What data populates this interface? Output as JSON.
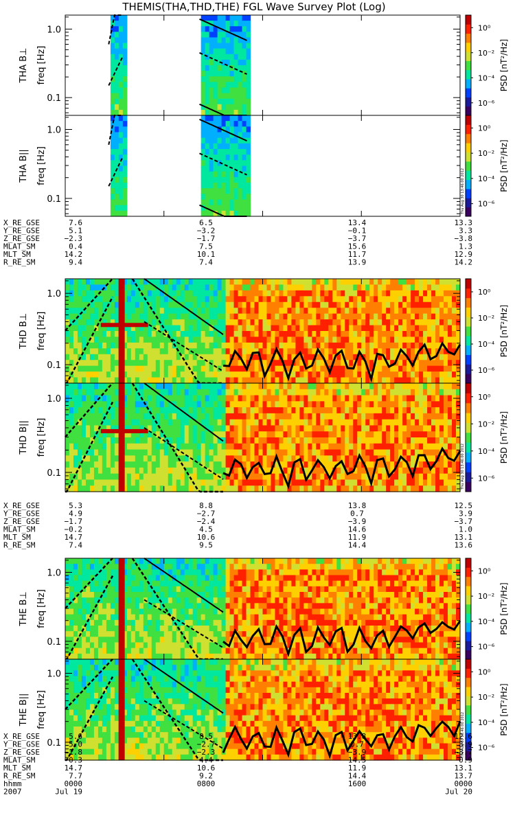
{
  "title": "THEMIS(THA,THD,THE) FGL Wave Survey Plot (Log)",
  "colors": {
    "background": "#ffffff",
    "axis": "#000000",
    "colorbar": [
      "#3a0060",
      "#1a1a9a",
      "#0040ff",
      "#00b0ff",
      "#00e8a0",
      "#40e040",
      "#d0e030",
      "#ffd000",
      "#ff8000",
      "#ff2000",
      "#c00000"
    ]
  },
  "stamp_text": "Thu Aug 30 13:46:00 2012",
  "chart_data": {
    "type": "heatmap",
    "scale": "log",
    "x_range": [
      "2007 Jul 19 0000",
      "2007 Jul 20 0000"
    ],
    "y_range_hz": [
      0.055,
      1.6
    ],
    "y_ticks": [
      "1.0",
      "0.1"
    ],
    "colorbar": {
      "label": "PSD [nT²/Hz]",
      "ticks": [
        "10⁰",
        "10⁻²",
        "10⁻⁴",
        "10⁻⁶"
      ],
      "range": [
        1e-07,
        10
      ]
    },
    "panels": [
      {
        "ylabel": "THA B⊥",
        "yunit": "freq [Hz]",
        "probe": "A"
      },
      {
        "ylabel": "THA B||",
        "yunit": "freq [Hz]",
        "probe": "A"
      },
      {
        "ylabel": "THD B⊥",
        "yunit": "freq [Hz]",
        "probe": "D"
      },
      {
        "ylabel": "THD B||",
        "yunit": "freq [Hz]",
        "probe": "D"
      },
      {
        "ylabel": "THE B⊥",
        "yunit": "freq [Hz]",
        "probe": "E"
      },
      {
        "ylabel": "THE B||",
        "yunit": "freq [Hz]",
        "probe": "E"
      }
    ],
    "ephemeris_groups": [
      {
        "rows": [
          {
            "name": "X_RE_GSE",
            "values": [
              "7.6",
              "6.5",
              "13.4",
              "13.3"
            ]
          },
          {
            "name": "Y_RE_GSE",
            "values": [
              "5.1",
              "−3.2",
              "−0.1",
              "3.3"
            ]
          },
          {
            "name": "Z_RE_GSE",
            "values": [
              "−2.3",
              "−1.7",
              "−3.7",
              "−3.8"
            ]
          },
          {
            "name": "MLAT_SM",
            "values": [
              "0.4",
              "7.5",
              "15.6",
              "1.3"
            ]
          },
          {
            "name": "MLT_SM",
            "values": [
              "14.2",
              "10.1",
              "11.7",
              "12.9"
            ]
          },
          {
            "name": "R_RE_SM",
            "values": [
              "9.4",
              "7.4",
              "13.9",
              "14.2"
            ]
          }
        ]
      },
      {
        "rows": [
          {
            "name": "X_RE_GSE",
            "values": [
              "5.3",
              "8.8",
              "13.8",
              "12.5"
            ]
          },
          {
            "name": "Y_RE_GSE",
            "values": [
              "4.9",
              "−2.7",
              "0.7",
              "3.9"
            ]
          },
          {
            "name": "Z_RE_GSE",
            "values": [
              "−1.7",
              "−2.4",
              "−3.9",
              "−3.7"
            ]
          },
          {
            "name": "MLAT_SM",
            "values": [
              "−0.2",
              "4.5",
              "14.6",
              "1.0"
            ]
          },
          {
            "name": "MLT_SM",
            "values": [
              "14.7",
              "10.6",
              "11.9",
              "13.1"
            ]
          },
          {
            "name": "R_RE_SM",
            "values": [
              "7.4",
              "9.5",
              "14.4",
              "13.6"
            ]
          }
        ]
      },
      {
        "rows": [
          {
            "name": "X_RE_GSE",
            "values": [
              "5.6",
              "8.5",
              "13.8",
              "12.6"
            ]
          },
          {
            "name": "Y_RE_GSE",
            "values": [
              "5.0",
              "−2.7",
              "0.7",
              "3.9"
            ]
          },
          {
            "name": "Z_RE_GSE",
            "values": [
              "−1.8",
              "−2.3",
              "−3.9",
              "−3.7"
            ]
          },
          {
            "name": "MLAT_SM",
            "values": [
              "−0.3",
              "4.4",
              "14.5",
              "0.9"
            ]
          },
          {
            "name": "MLT_SM",
            "values": [
              "14.7",
              "10.6",
              "11.9",
              "13.1"
            ]
          },
          {
            "name": "R_RE_SM",
            "values": [
              "7.7",
              "9.2",
              "14.4",
              "13.7"
            ]
          },
          {
            "name": "hhmm",
            "values": [
              "0000",
              "0800",
              "1600",
              "0000"
            ]
          },
          {
            "name": "2007",
            "values": [
              "Jul 19",
              "",
              "",
              "Jul 20"
            ]
          }
        ]
      }
    ]
  }
}
